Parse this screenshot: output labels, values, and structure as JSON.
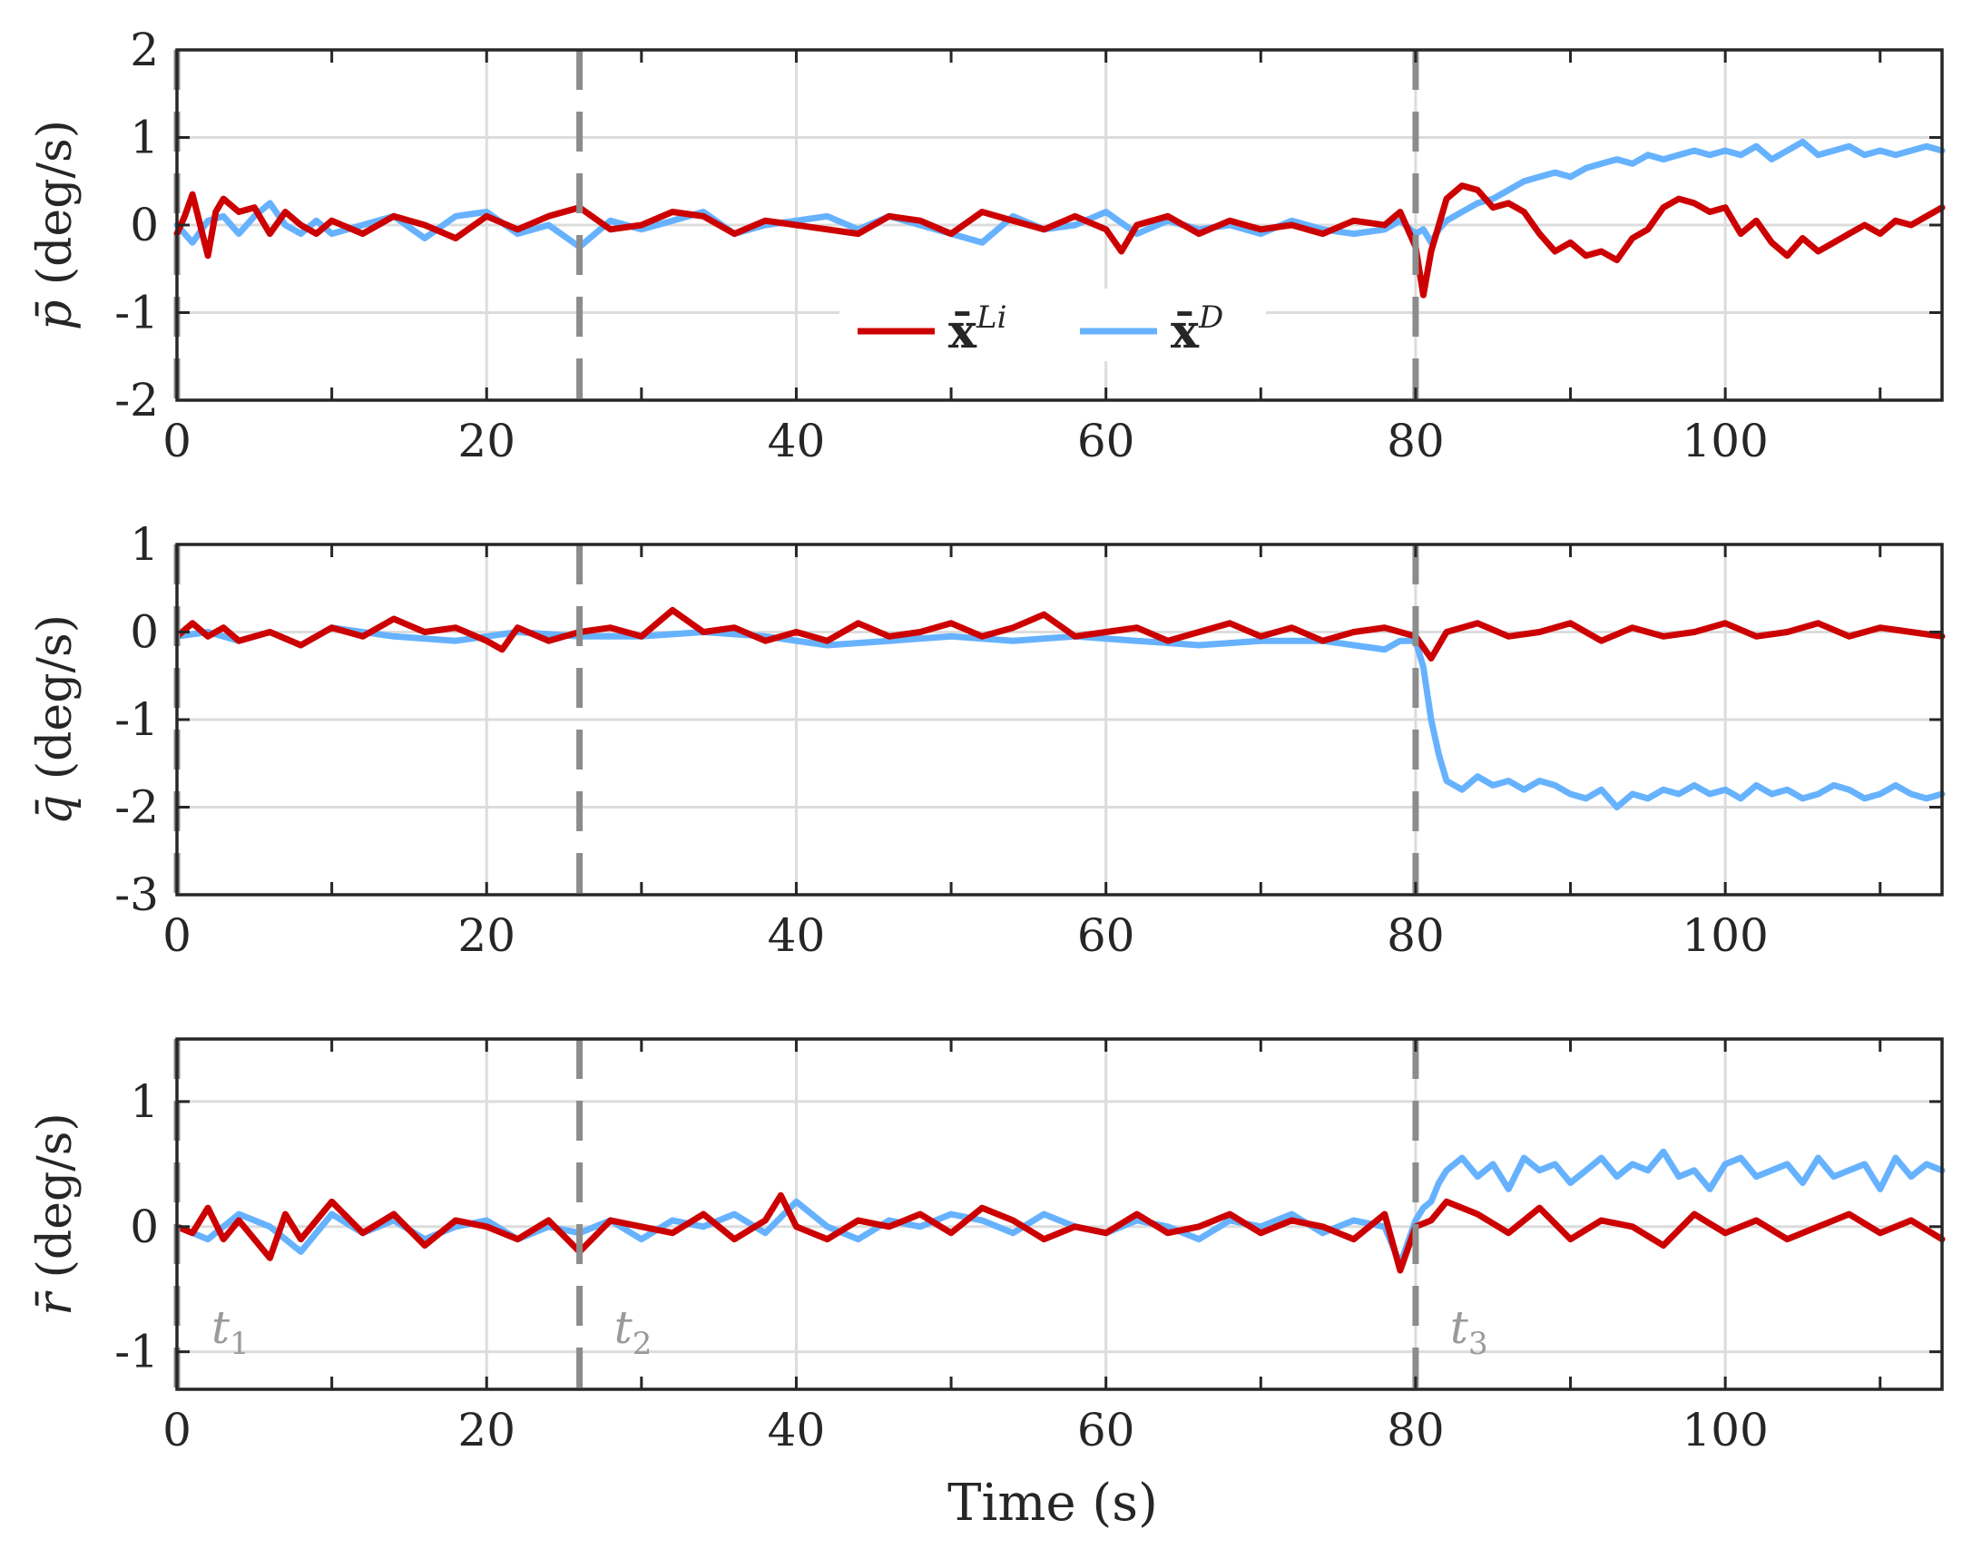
{
  "chart_data": {
    "type": "line",
    "xlabel": "Time (s)",
    "xlim": [
      0,
      114
    ],
    "xticks": [
      0,
      20,
      40,
      60,
      80,
      100
    ],
    "xtick_labels": [
      "0",
      "20",
      "40",
      "60",
      "80",
      "100"
    ],
    "grid": true,
    "colors": {
      "Li": "#cc0000",
      "D": "#66b2ff",
      "event": "#8c8c8c",
      "grid": "#dcdcdc",
      "axis": "#262626"
    },
    "legend": [
      {
        "key": "Li",
        "label_base": "x̄",
        "label_sup": "Li"
      },
      {
        "key": "D",
        "label_base": "x̄",
        "label_sup": "D"
      }
    ],
    "events": [
      {
        "time": 0,
        "label_base": "t",
        "label_sub": "1"
      },
      {
        "time": 26,
        "label_base": "t",
        "label_sub": "2"
      },
      {
        "time": 80,
        "label_base": "t",
        "label_sub": "3"
      }
    ],
    "panels": [
      {
        "id": "p",
        "ylabel_sym": "p̄",
        "ylabel_unit": "(deg/s)",
        "ylim": [
          -2,
          2
        ],
        "yticks": [
          -2,
          -1,
          0,
          1,
          2
        ],
        "ytick_labels": [
          "-2",
          "-1",
          "0",
          "1",
          "2"
        ],
        "series": [
          {
            "key": "D",
            "name": "x̄^D",
            "x": [
              0,
              1,
              2,
              3,
              4,
              5,
              6,
              7,
              8,
              9,
              10,
              12,
              14,
              16,
              18,
              20,
              22,
              24,
              26,
              28,
              30,
              32,
              34,
              36,
              38,
              40,
              42,
              44,
              46,
              48,
              50,
              52,
              54,
              56,
              58,
              60,
              62,
              64,
              66,
              68,
              70,
              72,
              74,
              76,
              78,
              79,
              80,
              80.5,
              81,
              81.5,
              82,
              83,
              84,
              85,
              86,
              87,
              88,
              89,
              90,
              91,
              92,
              93,
              94,
              95,
              96,
              97,
              98,
              99,
              100,
              101,
              102,
              103,
              104,
              105,
              106,
              107,
              108,
              109,
              110,
              111,
              112,
              113,
              114
            ],
            "y": [
              0.0,
              -0.2,
              0.05,
              0.1,
              -0.1,
              0.1,
              0.25,
              0.0,
              -0.1,
              0.05,
              -0.1,
              0.0,
              0.1,
              -0.15,
              0.1,
              0.15,
              -0.1,
              0.0,
              -0.25,
              0.05,
              -0.05,
              0.05,
              0.15,
              -0.1,
              0.0,
              0.05,
              0.1,
              -0.05,
              0.1,
              0.0,
              -0.1,
              -0.2,
              0.1,
              -0.05,
              0.0,
              0.15,
              -0.1,
              0.05,
              -0.05,
              0.0,
              -0.1,
              0.05,
              -0.05,
              -0.1,
              -0.05,
              0.05,
              -0.1,
              -0.05,
              -0.2,
              -0.05,
              0.05,
              0.15,
              0.25,
              0.3,
              0.4,
              0.5,
              0.55,
              0.6,
              0.55,
              0.65,
              0.7,
              0.75,
              0.7,
              0.8,
              0.75,
              0.8,
              0.85,
              0.8,
              0.85,
              0.8,
              0.9,
              0.75,
              0.85,
              0.95,
              0.8,
              0.85,
              0.9,
              0.8,
              0.85,
              0.8,
              0.85,
              0.9,
              0.85
            ]
          },
          {
            "key": "Li",
            "name": "x̄^Li",
            "x": [
              0,
              0.5,
              1,
              1.5,
              2,
              2.5,
              3,
              4,
              5,
              6,
              7,
              8,
              9,
              10,
              12,
              14,
              16,
              18,
              20,
              22,
              24,
              26,
              28,
              30,
              32,
              34,
              36,
              38,
              40,
              42,
              44,
              46,
              48,
              50,
              52,
              54,
              56,
              58,
              60,
              61,
              62,
              64,
              66,
              68,
              70,
              72,
              74,
              76,
              78,
              79,
              80,
              80.5,
              81,
              81.5,
              82,
              83,
              84,
              85,
              86,
              87,
              88,
              89,
              90,
              91,
              92,
              93,
              94,
              95,
              96,
              97,
              98,
              99,
              100,
              101,
              102,
              103,
              104,
              105,
              106,
              107,
              108,
              109,
              110,
              111,
              112,
              113,
              114
            ],
            "y": [
              -0.1,
              0.1,
              0.35,
              0.0,
              -0.35,
              0.15,
              0.3,
              0.15,
              0.2,
              -0.1,
              0.15,
              0.0,
              -0.1,
              0.05,
              -0.1,
              0.1,
              0.0,
              -0.15,
              0.1,
              -0.05,
              0.1,
              0.2,
              -0.05,
              0.0,
              0.15,
              0.1,
              -0.1,
              0.05,
              0.0,
              -0.05,
              -0.1,
              0.1,
              0.05,
              -0.1,
              0.15,
              0.05,
              -0.05,
              0.1,
              -0.05,
              -0.3,
              0.0,
              0.1,
              -0.1,
              0.05,
              -0.05,
              0.0,
              -0.1,
              0.05,
              0.0,
              0.15,
              -0.25,
              -0.8,
              -0.3,
              0.0,
              0.3,
              0.45,
              0.4,
              0.2,
              0.25,
              0.15,
              -0.1,
              -0.3,
              -0.2,
              -0.35,
              -0.3,
              -0.4,
              -0.15,
              -0.05,
              0.2,
              0.3,
              0.25,
              0.15,
              0.2,
              -0.1,
              0.05,
              -0.2,
              -0.35,
              -0.15,
              -0.3,
              -0.2,
              -0.1,
              0.0,
              -0.1,
              0.05,
              0.0,
              0.1,
              0.2
            ]
          }
        ]
      },
      {
        "id": "q",
        "ylabel_sym": "q̄",
        "ylabel_unit": "(deg/s)",
        "ylim": [
          -3,
          1
        ],
        "yticks": [
          -3,
          -2,
          -1,
          0,
          1
        ],
        "ytick_labels": [
          "-3",
          "-2",
          "-1",
          "0",
          "1"
        ],
        "series": [
          {
            "key": "D",
            "name": "x̄^D",
            "x": [
              0,
              2,
              4,
              6,
              8,
              10,
              14,
              18,
              22,
              26,
              30,
              34,
              38,
              42,
              46,
              50,
              54,
              58,
              62,
              66,
              70,
              74,
              78,
              79,
              80,
              80.5,
              81,
              81.5,
              82,
              83,
              84,
              85,
              86,
              87,
              88,
              89,
              90,
              91,
              92,
              93,
              94,
              95,
              96,
              97,
              98,
              99,
              100,
              101,
              102,
              103,
              104,
              105,
              106,
              107,
              108,
              109,
              110,
              111,
              112,
              113,
              114
            ],
            "y": [
              -0.05,
              0.0,
              -0.1,
              0.0,
              -0.15,
              0.05,
              -0.05,
              -0.1,
              0.0,
              -0.05,
              -0.05,
              0.0,
              -0.05,
              -0.15,
              -0.1,
              -0.05,
              -0.1,
              -0.05,
              -0.1,
              -0.15,
              -0.1,
              -0.1,
              -0.2,
              -0.1,
              -0.1,
              -0.4,
              -1.0,
              -1.4,
              -1.7,
              -1.8,
              -1.65,
              -1.75,
              -1.7,
              -1.8,
              -1.7,
              -1.75,
              -1.85,
              -1.9,
              -1.8,
              -2.0,
              -1.85,
              -1.9,
              -1.8,
              -1.85,
              -1.75,
              -1.85,
              -1.8,
              -1.9,
              -1.75,
              -1.85,
              -1.8,
              -1.9,
              -1.85,
              -1.75,
              -1.8,
              -1.9,
              -1.85,
              -1.75,
              -1.85,
              -1.9,
              -1.85
            ]
          },
          {
            "key": "Li",
            "name": "x̄^Li",
            "x": [
              0,
              1,
              2,
              3,
              4,
              6,
              8,
              10,
              12,
              14,
              16,
              18,
              20,
              21,
              22,
              24,
              26,
              28,
              30,
              32,
              34,
              36,
              38,
              40,
              42,
              44,
              46,
              48,
              50,
              52,
              54,
              56,
              58,
              60,
              62,
              64,
              66,
              68,
              70,
              72,
              74,
              76,
              78,
              80,
              81,
              82,
              84,
              86,
              88,
              90,
              92,
              94,
              96,
              98,
              100,
              102,
              104,
              106,
              108,
              110,
              112,
              114
            ],
            "y": [
              -0.05,
              0.1,
              -0.05,
              0.05,
              -0.1,
              0.0,
              -0.15,
              0.05,
              -0.05,
              0.15,
              0.0,
              0.05,
              -0.1,
              -0.2,
              0.05,
              -0.1,
              0.0,
              0.05,
              -0.05,
              0.25,
              0.0,
              0.05,
              -0.1,
              0.0,
              -0.1,
              0.1,
              -0.05,
              0.0,
              0.1,
              -0.05,
              0.05,
              0.2,
              -0.05,
              0.0,
              0.05,
              -0.1,
              0.0,
              0.1,
              -0.05,
              0.05,
              -0.1,
              0.0,
              0.05,
              -0.05,
              -0.3,
              0.0,
              0.1,
              -0.05,
              0.0,
              0.1,
              -0.1,
              0.05,
              -0.05,
              0.0,
              0.1,
              -0.05,
              0.0,
              0.1,
              -0.05,
              0.05,
              0.0,
              -0.05
            ]
          }
        ]
      },
      {
        "id": "r",
        "ylabel_sym": "r̄",
        "ylabel_unit": "(deg/s)",
        "ylim": [
          -1.3,
          1.5
        ],
        "yticks": [
          -1,
          0,
          1
        ],
        "ytick_labels": [
          "-1",
          "0",
          "1"
        ],
        "series": [
          {
            "key": "D",
            "name": "x̄^D",
            "x": [
              0,
              2,
              4,
              6,
              8,
              10,
              12,
              14,
              16,
              18,
              20,
              22,
              24,
              26,
              28,
              30,
              32,
              34,
              36,
              38,
              40,
              42,
              44,
              46,
              48,
              50,
              52,
              54,
              56,
              58,
              60,
              62,
              64,
              66,
              68,
              70,
              72,
              74,
              76,
              78,
              79,
              80,
              80.5,
              81,
              81.5,
              82,
              83,
              84,
              85,
              86,
              87,
              88,
              89,
              90,
              91,
              92,
              93,
              94,
              95,
              96,
              97,
              98,
              99,
              100,
              101,
              102,
              103,
              104,
              105,
              106,
              107,
              108,
              109,
              110,
              111,
              112,
              113,
              114
            ],
            "y": [
              0.0,
              -0.1,
              0.1,
              0.0,
              -0.2,
              0.1,
              -0.05,
              0.05,
              -0.1,
              0.0,
              0.05,
              -0.1,
              0.0,
              -0.05,
              0.05,
              -0.1,
              0.05,
              0.0,
              0.1,
              -0.05,
              0.2,
              0.0,
              -0.1,
              0.05,
              0.0,
              0.1,
              0.05,
              -0.05,
              0.1,
              0.0,
              -0.05,
              0.05,
              0.0,
              -0.1,
              0.05,
              0.0,
              0.1,
              -0.05,
              0.05,
              0.0,
              -0.3,
              0.05,
              0.15,
              0.2,
              0.35,
              0.45,
              0.55,
              0.4,
              0.5,
              0.3,
              0.55,
              0.45,
              0.5,
              0.35,
              0.45,
              0.55,
              0.4,
              0.5,
              0.45,
              0.6,
              0.4,
              0.45,
              0.3,
              0.5,
              0.55,
              0.4,
              0.45,
              0.5,
              0.35,
              0.55,
              0.4,
              0.45,
              0.5,
              0.3,
              0.55,
              0.4,
              0.5,
              0.45
            ]
          },
          {
            "key": "Li",
            "name": "x̄^Li",
            "x": [
              0,
              1,
              2,
              3,
              4,
              6,
              7,
              8,
              10,
              12,
              14,
              16,
              18,
              20,
              22,
              24,
              26,
              28,
              30,
              32,
              34,
              36,
              38,
              39,
              40,
              42,
              44,
              46,
              48,
              50,
              52,
              54,
              56,
              58,
              60,
              62,
              64,
              66,
              68,
              70,
              72,
              74,
              76,
              78,
              79,
              80,
              81,
              82,
              84,
              86,
              88,
              90,
              92,
              94,
              96,
              98,
              100,
              102,
              104,
              106,
              108,
              110,
              112,
              114
            ],
            "y": [
              0.0,
              -0.05,
              0.15,
              -0.1,
              0.05,
              -0.25,
              0.1,
              -0.1,
              0.2,
              -0.05,
              0.1,
              -0.15,
              0.05,
              0.0,
              -0.1,
              0.05,
              -0.2,
              0.05,
              0.0,
              -0.05,
              0.1,
              -0.1,
              0.05,
              0.25,
              0.0,
              -0.1,
              0.05,
              0.0,
              0.1,
              -0.05,
              0.15,
              0.05,
              -0.1,
              0.0,
              -0.05,
              0.1,
              -0.05,
              0.0,
              0.1,
              -0.05,
              0.05,
              0.0,
              -0.1,
              0.1,
              -0.35,
              0.0,
              0.05,
              0.2,
              0.1,
              -0.05,
              0.15,
              -0.1,
              0.05,
              0.0,
              -0.15,
              0.1,
              -0.05,
              0.05,
              -0.1,
              0.0,
              0.1,
              -0.05,
              0.05,
              -0.1
            ]
          }
        ]
      }
    ]
  }
}
